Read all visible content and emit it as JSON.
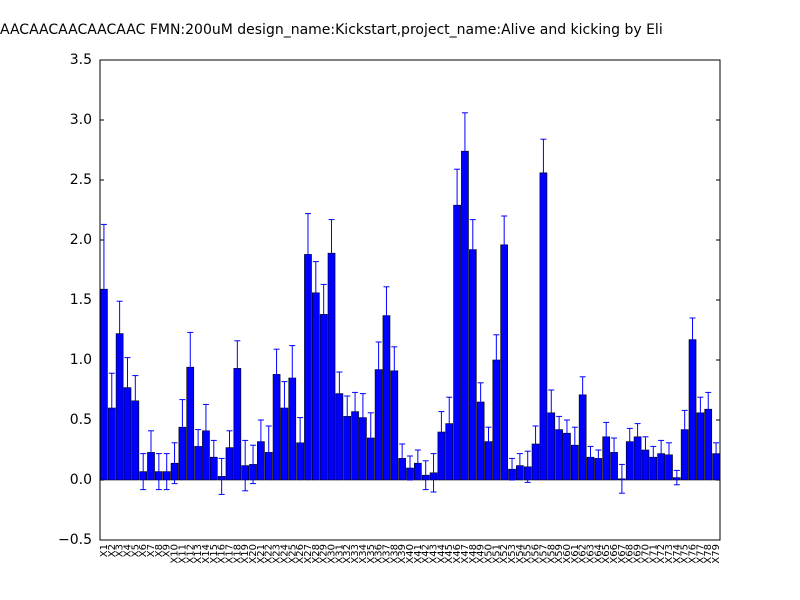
{
  "chart_data": {
    "type": "bar",
    "title": "AACAACAACAACAAC  FMN:200uM  design_name:Kickstart,project_name:Alive and kicking by Eli",
    "categories": [
      "X1",
      "X2",
      "X3",
      "X4",
      "X5",
      "X6",
      "X7",
      "X8",
      "X9",
      "X10",
      "X11",
      "X12",
      "X13",
      "X14",
      "X15",
      "X16",
      "X17",
      "X18",
      "X19",
      "X20",
      "X21",
      "X22",
      "X23",
      "X24",
      "X25",
      "X26",
      "X27",
      "X28",
      "X29",
      "X30",
      "X31",
      "X32",
      "X33",
      "X34",
      "X35",
      "X36",
      "X37",
      "X38",
      "X39",
      "X40",
      "X41",
      "X42",
      "X43",
      "X44",
      "X45",
      "X46",
      "X47",
      "X48",
      "X49",
      "X50",
      "X51",
      "X52",
      "X53",
      "X54",
      "X55",
      "X56",
      "X57",
      "X58",
      "X59",
      "X60",
      "X61",
      "X62",
      "X63",
      "X64",
      "X65",
      "X66",
      "X67",
      "X68",
      "X69",
      "X70",
      "X71",
      "X72",
      "X73",
      "X74",
      "X75",
      "X76",
      "X77",
      "X78",
      "X79"
    ],
    "values": [
      1.59,
      0.6,
      1.22,
      0.77,
      0.66,
      0.07,
      0.23,
      0.07,
      0.07,
      0.14,
      0.44,
      0.94,
      0.28,
      0.41,
      0.19,
      0.03,
      0.27,
      0.93,
      0.12,
      0.13,
      0.32,
      0.23,
      0.88,
      0.6,
      0.85,
      0.31,
      1.88,
      1.56,
      1.38,
      1.89,
      0.72,
      0.53,
      0.57,
      0.52,
      0.35,
      0.92,
      1.37,
      0.91,
      0.18,
      0.1,
      0.14,
      0.04,
      0.06,
      0.4,
      0.47,
      2.29,
      2.74,
      1.92,
      0.65,
      0.32,
      1.0,
      1.96,
      0.09,
      0.12,
      0.11,
      0.3,
      2.56,
      0.56,
      0.42,
      0.39,
      0.29,
      0.71,
      0.19,
      0.18,
      0.36,
      0.23,
      0.01,
      0.32,
      0.36,
      0.25,
      0.19,
      0.22,
      0.21,
      0.02,
      0.42,
      1.17,
      0.56,
      0.59,
      0.22
    ],
    "errors": [
      0.54,
      0.29,
      0.27,
      0.25,
      0.21,
      0.15,
      0.18,
      0.15,
      0.15,
      0.17,
      0.23,
      0.29,
      0.14,
      0.22,
      0.14,
      0.15,
      0.14,
      0.23,
      0.21,
      0.16,
      0.18,
      0.22,
      0.21,
      0.22,
      0.27,
      0.21,
      0.34,
      0.26,
      0.25,
      0.28,
      0.18,
      0.17,
      0.16,
      0.2,
      0.21,
      0.23,
      0.24,
      0.2,
      0.12,
      0.1,
      0.11,
      0.12,
      0.16,
      0.17,
      0.22,
      0.3,
      0.32,
      0.25,
      0.16,
      0.12,
      0.21,
      0.24,
      0.09,
      0.1,
      0.13,
      0.15,
      0.28,
      0.19,
      0.11,
      0.11,
      0.15,
      0.15,
      0.09,
      0.07,
      0.12,
      0.12,
      0.12,
      0.11,
      0.11,
      0.11,
      0.09,
      0.11,
      0.1,
      0.06,
      0.16,
      0.18,
      0.13,
      0.14,
      0.09
    ],
    "color": "#0000ff",
    "ylim": [
      -0.5,
      3.5
    ],
    "yticks": [
      {
        "value": -0.5,
        "label": "−0.5"
      },
      {
        "value": 0,
        "label": "0.0"
      },
      0.5,
      {
        "value": 1,
        "label": "1.0"
      },
      1.5,
      {
        "value": 2,
        "label": "2.0"
      },
      2.5,
      {
        "value": 3,
        "label": "3.0"
      },
      3.5
    ]
  }
}
